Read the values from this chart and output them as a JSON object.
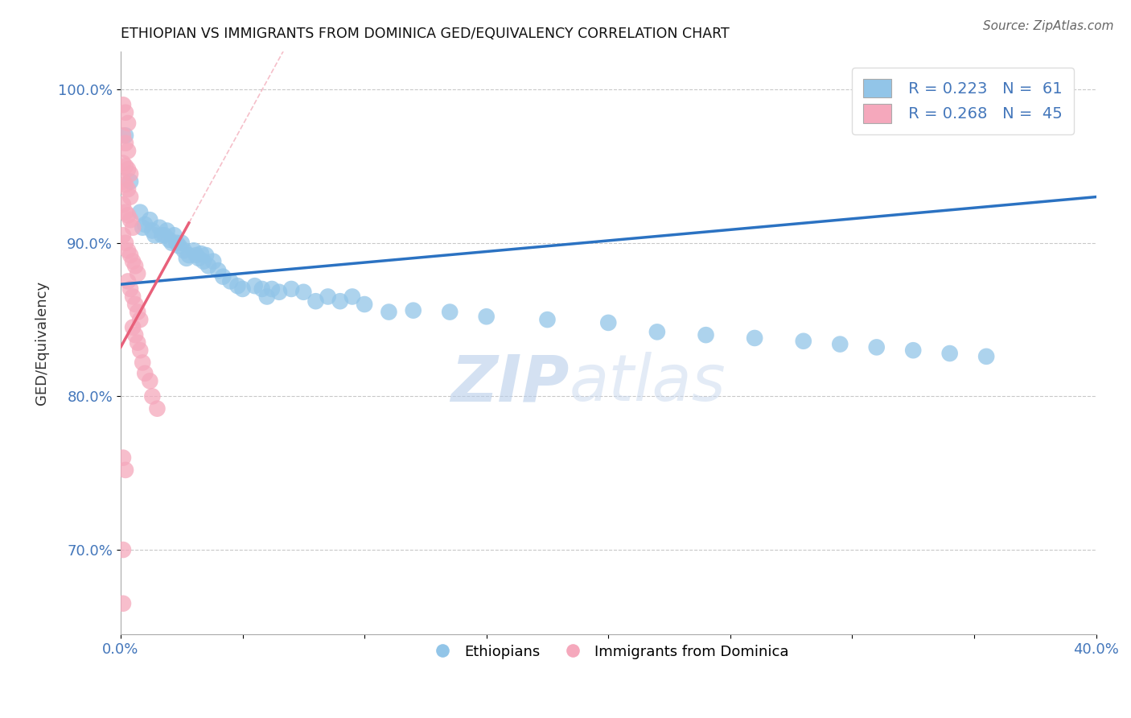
{
  "title": "ETHIOPIAN VS IMMIGRANTS FROM DOMINICA GED/EQUIVALENCY CORRELATION CHART",
  "source": "Source: ZipAtlas.com",
  "ylabel": "GED/Equivalency",
  "xlim": [
    0.0,
    0.4
  ],
  "ylim": [
    0.645,
    1.025
  ],
  "yticks": [
    0.7,
    0.8,
    0.9,
    1.0
  ],
  "yticklabels": [
    "70.0%",
    "80.0%",
    "90.0%",
    "100.0%"
  ],
  "legend_r1": "R = 0.223",
  "legend_n1": "N =  61",
  "legend_r2": "R = 0.268",
  "legend_n2": "N =  45",
  "blue_color": "#92C5E8",
  "pink_color": "#F5A8BC",
  "blue_line_color": "#2B72C2",
  "pink_line_color": "#E8607A",
  "blue_scatter": [
    [
      0.002,
      0.97
    ],
    [
      0.004,
      0.94
    ],
    [
      0.008,
      0.92
    ],
    [
      0.009,
      0.91
    ],
    [
      0.01,
      0.912
    ],
    [
      0.012,
      0.915
    ],
    [
      0.013,
      0.908
    ],
    [
      0.014,
      0.905
    ],
    [
      0.016,
      0.91
    ],
    [
      0.017,
      0.905
    ],
    [
      0.018,
      0.905
    ],
    [
      0.019,
      0.908
    ],
    [
      0.02,
      0.902
    ],
    [
      0.021,
      0.9
    ],
    [
      0.022,
      0.905
    ],
    [
      0.023,
      0.9
    ],
    [
      0.024,
      0.898
    ],
    [
      0.025,
      0.9
    ],
    [
      0.026,
      0.895
    ],
    [
      0.027,
      0.89
    ],
    [
      0.028,
      0.892
    ],
    [
      0.03,
      0.895
    ],
    [
      0.031,
      0.892
    ],
    [
      0.032,
      0.89
    ],
    [
      0.033,
      0.893
    ],
    [
      0.034,
      0.888
    ],
    [
      0.035,
      0.892
    ],
    [
      0.036,
      0.885
    ],
    [
      0.038,
      0.888
    ],
    [
      0.04,
      0.882
    ],
    [
      0.042,
      0.878
    ],
    [
      0.045,
      0.875
    ],
    [
      0.048,
      0.872
    ],
    [
      0.05,
      0.87
    ],
    [
      0.055,
      0.872
    ],
    [
      0.058,
      0.87
    ],
    [
      0.06,
      0.865
    ],
    [
      0.062,
      0.87
    ],
    [
      0.065,
      0.868
    ],
    [
      0.07,
      0.87
    ],
    [
      0.075,
      0.868
    ],
    [
      0.08,
      0.862
    ],
    [
      0.085,
      0.865
    ],
    [
      0.09,
      0.862
    ],
    [
      0.095,
      0.865
    ],
    [
      0.1,
      0.86
    ],
    [
      0.11,
      0.855
    ],
    [
      0.12,
      0.856
    ],
    [
      0.135,
      0.855
    ],
    [
      0.15,
      0.852
    ],
    [
      0.175,
      0.85
    ],
    [
      0.2,
      0.848
    ],
    [
      0.22,
      0.842
    ],
    [
      0.24,
      0.84
    ],
    [
      0.26,
      0.838
    ],
    [
      0.28,
      0.836
    ],
    [
      0.295,
      0.834
    ],
    [
      0.31,
      0.832
    ],
    [
      0.325,
      0.83
    ],
    [
      0.34,
      0.828
    ],
    [
      0.355,
      0.826
    ]
  ],
  "pink_scatter": [
    [
      0.001,
      0.99
    ],
    [
      0.002,
      0.985
    ],
    [
      0.003,
      0.978
    ],
    [
      0.001,
      0.97
    ],
    [
      0.002,
      0.965
    ],
    [
      0.003,
      0.96
    ],
    [
      0.001,
      0.952
    ],
    [
      0.002,
      0.95
    ],
    [
      0.003,
      0.948
    ],
    [
      0.004,
      0.945
    ],
    [
      0.001,
      0.94
    ],
    [
      0.002,
      0.938
    ],
    [
      0.003,
      0.935
    ],
    [
      0.004,
      0.93
    ],
    [
      0.001,
      0.925
    ],
    [
      0.002,
      0.92
    ],
    [
      0.003,
      0.918
    ],
    [
      0.004,
      0.915
    ],
    [
      0.005,
      0.91
    ],
    [
      0.001,
      0.905
    ],
    [
      0.002,
      0.9
    ],
    [
      0.003,
      0.895
    ],
    [
      0.004,
      0.892
    ],
    [
      0.005,
      0.888
    ],
    [
      0.006,
      0.885
    ],
    [
      0.007,
      0.88
    ],
    [
      0.003,
      0.875
    ],
    [
      0.004,
      0.87
    ],
    [
      0.005,
      0.865
    ],
    [
      0.006,
      0.86
    ],
    [
      0.007,
      0.855
    ],
    [
      0.008,
      0.85
    ],
    [
      0.005,
      0.845
    ],
    [
      0.006,
      0.84
    ],
    [
      0.007,
      0.835
    ],
    [
      0.008,
      0.83
    ],
    [
      0.009,
      0.822
    ],
    [
      0.01,
      0.815
    ],
    [
      0.012,
      0.81
    ],
    [
      0.013,
      0.8
    ],
    [
      0.015,
      0.792
    ],
    [
      0.001,
      0.76
    ],
    [
      0.002,
      0.752
    ],
    [
      0.001,
      0.7
    ],
    [
      0.001,
      0.665
    ]
  ],
  "watermark_zip": "ZIP",
  "watermark_atlas": "atlas",
  "background_color": "#FFFFFF",
  "grid_color": "#BBBBBB"
}
